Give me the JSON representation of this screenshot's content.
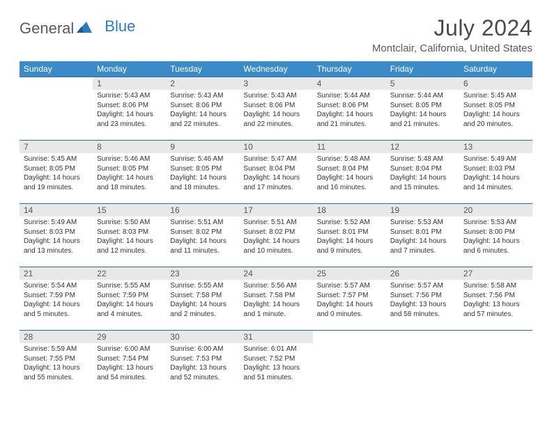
{
  "logo": {
    "text1": "General",
    "text2": "Blue"
  },
  "month_title": "July 2024",
  "location": "Montclair, California, United States",
  "header_bg": "#3b8bc9",
  "header_fg": "#ffffff",
  "daynum_bg": "#e8e8e8",
  "row_border": "#2a6aa0",
  "day_headers": [
    "Sunday",
    "Monday",
    "Tuesday",
    "Wednesday",
    "Thursday",
    "Friday",
    "Saturday"
  ],
  "weeks": [
    [
      null,
      {
        "n": "1",
        "sr": "5:43 AM",
        "ss": "8:06 PM",
        "dl": "14 hours and 23 minutes."
      },
      {
        "n": "2",
        "sr": "5:43 AM",
        "ss": "8:06 PM",
        "dl": "14 hours and 22 minutes."
      },
      {
        "n": "3",
        "sr": "5:43 AM",
        "ss": "8:06 PM",
        "dl": "14 hours and 22 minutes."
      },
      {
        "n": "4",
        "sr": "5:44 AM",
        "ss": "8:06 PM",
        "dl": "14 hours and 21 minutes."
      },
      {
        "n": "5",
        "sr": "5:44 AM",
        "ss": "8:05 PM",
        "dl": "14 hours and 21 minutes."
      },
      {
        "n": "6",
        "sr": "5:45 AM",
        "ss": "8:05 PM",
        "dl": "14 hours and 20 minutes."
      }
    ],
    [
      {
        "n": "7",
        "sr": "5:45 AM",
        "ss": "8:05 PM",
        "dl": "14 hours and 19 minutes."
      },
      {
        "n": "8",
        "sr": "5:46 AM",
        "ss": "8:05 PM",
        "dl": "14 hours and 18 minutes."
      },
      {
        "n": "9",
        "sr": "5:46 AM",
        "ss": "8:05 PM",
        "dl": "14 hours and 18 minutes."
      },
      {
        "n": "10",
        "sr": "5:47 AM",
        "ss": "8:04 PM",
        "dl": "14 hours and 17 minutes."
      },
      {
        "n": "11",
        "sr": "5:48 AM",
        "ss": "8:04 PM",
        "dl": "14 hours and 16 minutes."
      },
      {
        "n": "12",
        "sr": "5:48 AM",
        "ss": "8:04 PM",
        "dl": "14 hours and 15 minutes."
      },
      {
        "n": "13",
        "sr": "5:49 AM",
        "ss": "8:03 PM",
        "dl": "14 hours and 14 minutes."
      }
    ],
    [
      {
        "n": "14",
        "sr": "5:49 AM",
        "ss": "8:03 PM",
        "dl": "14 hours and 13 minutes."
      },
      {
        "n": "15",
        "sr": "5:50 AM",
        "ss": "8:03 PM",
        "dl": "14 hours and 12 minutes."
      },
      {
        "n": "16",
        "sr": "5:51 AM",
        "ss": "8:02 PM",
        "dl": "14 hours and 11 minutes."
      },
      {
        "n": "17",
        "sr": "5:51 AM",
        "ss": "8:02 PM",
        "dl": "14 hours and 10 minutes."
      },
      {
        "n": "18",
        "sr": "5:52 AM",
        "ss": "8:01 PM",
        "dl": "14 hours and 9 minutes."
      },
      {
        "n": "19",
        "sr": "5:53 AM",
        "ss": "8:01 PM",
        "dl": "14 hours and 7 minutes."
      },
      {
        "n": "20",
        "sr": "5:53 AM",
        "ss": "8:00 PM",
        "dl": "14 hours and 6 minutes."
      }
    ],
    [
      {
        "n": "21",
        "sr": "5:54 AM",
        "ss": "7:59 PM",
        "dl": "14 hours and 5 minutes."
      },
      {
        "n": "22",
        "sr": "5:55 AM",
        "ss": "7:59 PM",
        "dl": "14 hours and 4 minutes."
      },
      {
        "n": "23",
        "sr": "5:55 AM",
        "ss": "7:58 PM",
        "dl": "14 hours and 2 minutes."
      },
      {
        "n": "24",
        "sr": "5:56 AM",
        "ss": "7:58 PM",
        "dl": "14 hours and 1 minute."
      },
      {
        "n": "25",
        "sr": "5:57 AM",
        "ss": "7:57 PM",
        "dl": "14 hours and 0 minutes."
      },
      {
        "n": "26",
        "sr": "5:57 AM",
        "ss": "7:56 PM",
        "dl": "13 hours and 58 minutes."
      },
      {
        "n": "27",
        "sr": "5:58 AM",
        "ss": "7:56 PM",
        "dl": "13 hours and 57 minutes."
      }
    ],
    [
      {
        "n": "28",
        "sr": "5:59 AM",
        "ss": "7:55 PM",
        "dl": "13 hours and 55 minutes."
      },
      {
        "n": "29",
        "sr": "6:00 AM",
        "ss": "7:54 PM",
        "dl": "13 hours and 54 minutes."
      },
      {
        "n": "30",
        "sr": "6:00 AM",
        "ss": "7:53 PM",
        "dl": "13 hours and 52 minutes."
      },
      {
        "n": "31",
        "sr": "6:01 AM",
        "ss": "7:52 PM",
        "dl": "13 hours and 51 minutes."
      },
      null,
      null,
      null
    ]
  ],
  "labels": {
    "sunrise": "Sunrise:",
    "sunset": "Sunset:",
    "daylight": "Daylight:"
  }
}
